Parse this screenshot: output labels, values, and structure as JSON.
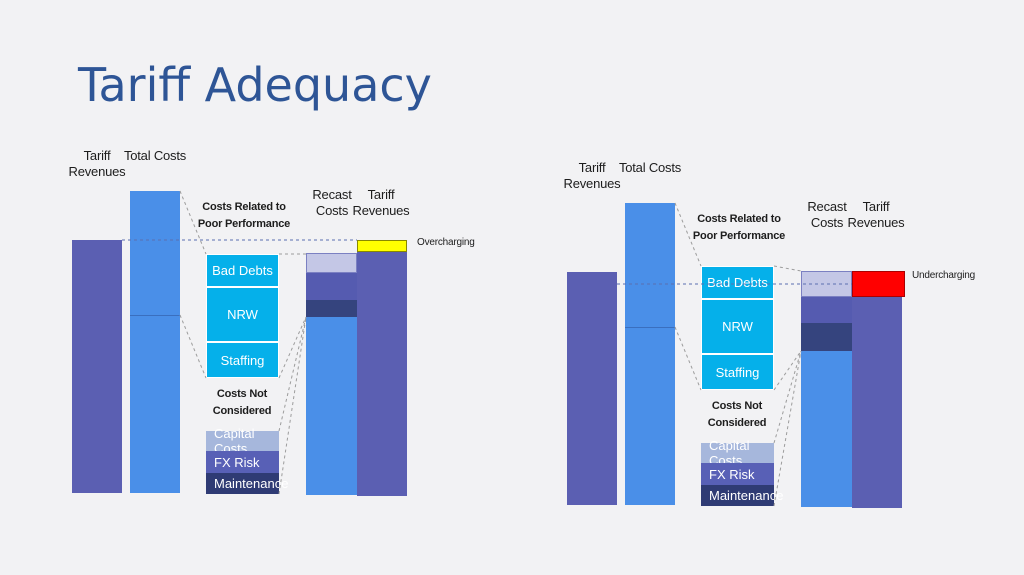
{
  "title": "Tariff Adequacy",
  "colors": {
    "tariff_bar": "#5b5fb2",
    "total_costs": "#4a8fe8",
    "recast_top": "#c4c7e6",
    "recast_mid": "#555bb0",
    "recast_dark": "#35447e",
    "cyan": "#05b0ea",
    "capital": "#a6b7dc",
    "fx": "#5860b6",
    "maintenance": "#2f3b74",
    "overcharging": "#ffff00",
    "undercharging": "#ff0000",
    "dashed_line": "#9c9c9c"
  },
  "diagrams": [
    {
      "labels": {
        "tariff_revenues": "Tariff\nRevenues",
        "total_costs": "Total Costs",
        "poor_performance": "Costs Related to\nPoor Performance",
        "not_considered": "Costs Not\nConsidered",
        "recast_costs": "Recast\nCosts",
        "tariff_revenues_right": "Tariff\nRevenues",
        "indicator": "Overcharging"
      },
      "segments": {
        "bad_debts": "Bad Debts",
        "nrw": "NRW",
        "staffing": "Staffing",
        "capital_costs": "Capital Costs",
        "fx_risk": "FX Risk",
        "maintenance": "Maintenance"
      }
    },
    {
      "labels": {
        "tariff_revenues": "Tariff\nRevenues",
        "total_costs": "Total Costs",
        "poor_performance": "Costs Related to\nPoor Performance",
        "not_considered": "Costs Not\nConsidered",
        "recast_costs": "Recast\nCosts",
        "tariff_revenues_right": "Tariff\nRevenues",
        "indicator": "Undercharging"
      },
      "segments": {
        "bad_debts": "Bad Debts",
        "nrw": "NRW",
        "staffing": "Staffing",
        "capital_costs": "Capital Costs",
        "fx_risk": "FX Risk",
        "maintenance": "Maintenance"
      }
    }
  ]
}
